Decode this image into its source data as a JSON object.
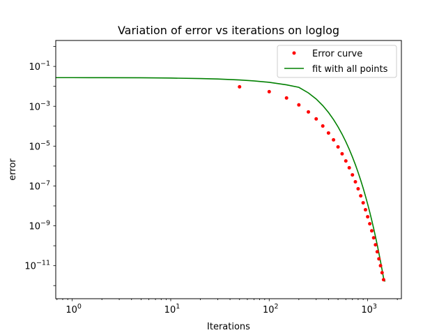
{
  "chart_data": {
    "type": "scatter",
    "title": "Variation of error vs iterations on loglog",
    "xlabel": "Iterations",
    "ylabel": "error",
    "x_scale": "log",
    "y_scale": "log",
    "xlim": [
      0.68,
      2200
    ],
    "ylim": [
      2.2e-13,
      2.0
    ],
    "x_ticks": [
      {
        "value": 1,
        "base": "10",
        "exp": "0"
      },
      {
        "value": 10,
        "base": "10",
        "exp": "1"
      },
      {
        "value": 100,
        "base": "10",
        "exp": "2"
      },
      {
        "value": 1000,
        "base": "10",
        "exp": "3"
      }
    ],
    "y_ticks": [
      {
        "value": 1e-11,
        "base": "10",
        "exp": "−11"
      },
      {
        "value": 1e-09,
        "base": "10",
        "exp": "−9"
      },
      {
        "value": 1e-07,
        "base": "10",
        "exp": "−7"
      },
      {
        "value": 1e-05,
        "base": "10",
        "exp": "−5"
      },
      {
        "value": 0.001,
        "base": "10",
        "exp": "−3"
      },
      {
        "value": 0.1,
        "base": "10",
        "exp": "−1"
      }
    ],
    "legend_position": "top-right",
    "series": [
      {
        "name": "Error curve",
        "kind": "markers",
        "color": "#ff0000",
        "x": [
          50,
          100,
          150,
          200,
          250,
          300,
          350,
          400,
          450,
          500,
          550,
          600,
          650,
          700,
          750,
          800,
          850,
          900,
          950,
          1000,
          1050,
          1100,
          1150,
          1200,
          1250,
          1300,
          1350,
          1400,
          1450
        ],
        "y": [
          0.0095,
          0.0054,
          0.0026,
          0.00117,
          0.00052,
          0.000232,
          0.000102,
          4.55e-05,
          2.06e-05,
          9.1e-06,
          4.1e-06,
          1.8e-06,
          8.2e-07,
          3.6e-07,
          1.62e-07,
          7.2e-08,
          3.2e-08,
          1.43e-08,
          6.4e-09,
          2.85e-09,
          1.27e-09,
          5.6e-10,
          2.5e-10,
          1.12e-10,
          5e-11,
          2.2e-11,
          1e-11,
          4.45e-12,
          1.98e-12
        ]
      },
      {
        "name": "fit with all points",
        "kind": "line",
        "color": "#008000",
        "x": [
          0.68,
          1,
          2,
          5,
          10,
          20,
          30,
          50,
          70,
          100,
          150,
          200,
          250,
          300,
          350,
          400,
          450,
          500,
          550,
          600,
          650,
          700,
          750,
          800,
          850,
          900,
          950,
          1000,
          1050,
          1100,
          1150,
          1200,
          1250,
          1300,
          1350,
          1400,
          1450,
          1500
        ],
        "y": [
          0.0273,
          0.0273,
          0.0272,
          0.0268,
          0.026,
          0.0246,
          0.0233,
          0.0209,
          0.0187,
          0.0159,
          0.0119,
          0.0089,
          0.00468,
          0.00231,
          0.00108,
          0.000488,
          0.000215,
          9.28e-05,
          3.95e-05,
          1.66e-05,
          6.9e-06,
          2.85e-06,
          1.17e-06,
          4.75e-07,
          1.92e-07,
          7.72e-08,
          3.08e-08,
          1.22e-08,
          4.82e-09,
          1.89e-09,
          7.39e-10,
          2.87e-10,
          1.11e-10,
          4.28e-11,
          1.64e-11,
          6.27e-12,
          2.39e-12,
          1.6e-12
        ]
      }
    ]
  }
}
